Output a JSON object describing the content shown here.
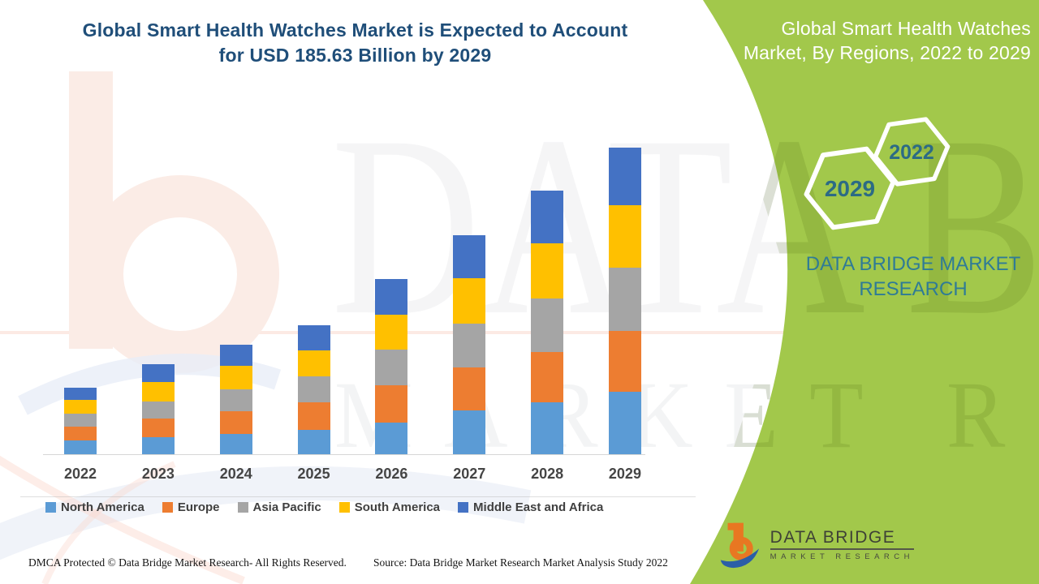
{
  "page_title": "Global Smart Health Watches Market infographic",
  "header": {
    "title_line1": "Global Smart Health Watches Market is Expected to Account",
    "title_line2": "for USD 185.63 Billion by 2029"
  },
  "right_panel": {
    "title_line1": "Global Smart Health Watches",
    "title_line2": "Market, By Regions, 2022 to 2029",
    "hexagon_top_year": "2022",
    "hexagon_bottom_year": "2029",
    "brand_line1": "DATA BRIDGE MARKET",
    "brand_line2": "RESEARCH",
    "logo_name": "DATA BRIDGE",
    "logo_sub": "MARKET RESEARCH"
  },
  "watermark": {
    "line1": "DATA BRIDGE",
    "line2": "MARKET RESEARCH"
  },
  "footer": {
    "left": "DMCA Protected © Data Bridge Market Research- All Rights Reserved.",
    "right": "Source: Data Bridge Market Research Market Analysis Study 2022"
  },
  "colors": {
    "green_panel": "#a2c84b",
    "title_blue": "#1f4e79",
    "teal_text": "#2f7b96",
    "hex_year_text": "#2c6b85",
    "axis_text": "#454545",
    "legend_text": "#404040",
    "logo_orange": "#e87722",
    "logo_blue": "#2b5ea7"
  },
  "chart_data": {
    "type": "bar",
    "stacked": true,
    "unit": "USD Billion",
    "title": "Global Smart Health Watches Market, By Regions, 2022 to 2029",
    "grid": false,
    "y_axis_visible": false,
    "legend_position": "bottom",
    "categories": [
      "2022",
      "2023",
      "2024",
      "2025",
      "2026",
      "2027",
      "2028",
      "2029"
    ],
    "series": [
      {
        "name": "North America",
        "color": "#5B9BD5",
        "values": [
          8.4,
          10.5,
          12.5,
          14.6,
          19.2,
          26.7,
          31.7,
          37.9
        ]
      },
      {
        "name": "Europe",
        "color": "#ED7D31",
        "values": [
          8.4,
          11.2,
          13.5,
          17.0,
          22.5,
          25.9,
          30.0,
          36.8
        ]
      },
      {
        "name": "Asia Pacific",
        "color": "#A5A5A5",
        "values": [
          8.0,
          10.0,
          13.4,
          15.5,
          21.7,
          26.7,
          32.5,
          38.1
        ]
      },
      {
        "name": "South America",
        "color": "#FFC000",
        "values": [
          7.9,
          11.9,
          14.2,
          15.8,
          20.9,
          27.5,
          33.4,
          38.1
        ]
      },
      {
        "name": "Middle East and Africa",
        "color": "#4472C4",
        "values": [
          7.7,
          10.9,
          12.9,
          15.0,
          22.0,
          25.9,
          32.0,
          34.7
        ]
      }
    ],
    "totals_by_year": [
      40.4,
      54.5,
      66.5,
      77.9,
      106.3,
      132.7,
      159.6,
      185.63
    ],
    "highlight_total_2029": "185.63"
  }
}
